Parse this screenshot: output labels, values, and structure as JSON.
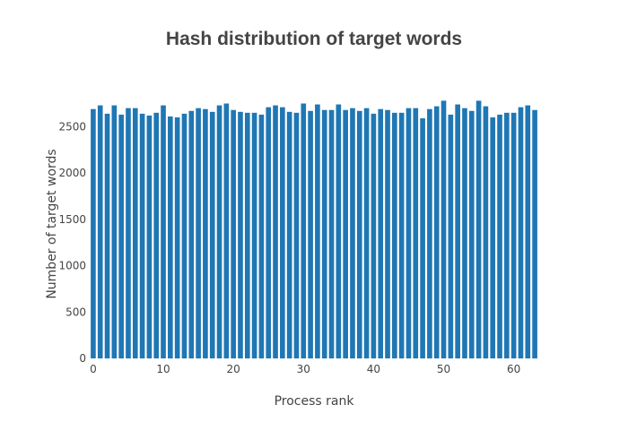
{
  "chart_data": {
    "type": "bar",
    "title": "Hash distribution of target words",
    "xlabel": "Process rank",
    "ylabel": "Number of target words",
    "x": [
      0,
      1,
      2,
      3,
      4,
      5,
      6,
      7,
      8,
      9,
      10,
      11,
      12,
      13,
      14,
      15,
      16,
      17,
      18,
      19,
      20,
      21,
      22,
      23,
      24,
      25,
      26,
      27,
      28,
      29,
      30,
      31,
      32,
      33,
      34,
      35,
      36,
      37,
      38,
      39,
      40,
      41,
      42,
      43,
      44,
      45,
      46,
      47,
      48,
      49,
      50,
      51,
      52,
      53,
      54,
      55,
      56,
      57,
      58,
      59,
      60,
      61,
      62,
      63
    ],
    "values": [
      2690,
      2730,
      2640,
      2730,
      2630,
      2700,
      2700,
      2640,
      2620,
      2650,
      2730,
      2610,
      2600,
      2640,
      2670,
      2700,
      2690,
      2660,
      2730,
      2750,
      2680,
      2660,
      2650,
      2650,
      2630,
      2710,
      2730,
      2710,
      2660,
      2650,
      2750,
      2670,
      2740,
      2680,
      2680,
      2740,
      2680,
      2700,
      2670,
      2700,
      2640,
      2690,
      2680,
      2650,
      2650,
      2700,
      2700,
      2590,
      2690,
      2720,
      2780,
      2630,
      2740,
      2700,
      2670,
      2780,
      2720,
      2600,
      2630,
      2650,
      2650,
      2710,
      2730,
      2680
    ],
    "xlim": [
      -0.5,
      63.5
    ],
    "ylim": [
      0,
      2900
    ],
    "x_ticks": [
      0,
      10,
      20,
      30,
      40,
      50,
      60
    ],
    "y_ticks": [
      0,
      500,
      1000,
      1500,
      2000,
      2500
    ],
    "grid": false,
    "legend": "none",
    "bar_color": "#1f77b4"
  }
}
